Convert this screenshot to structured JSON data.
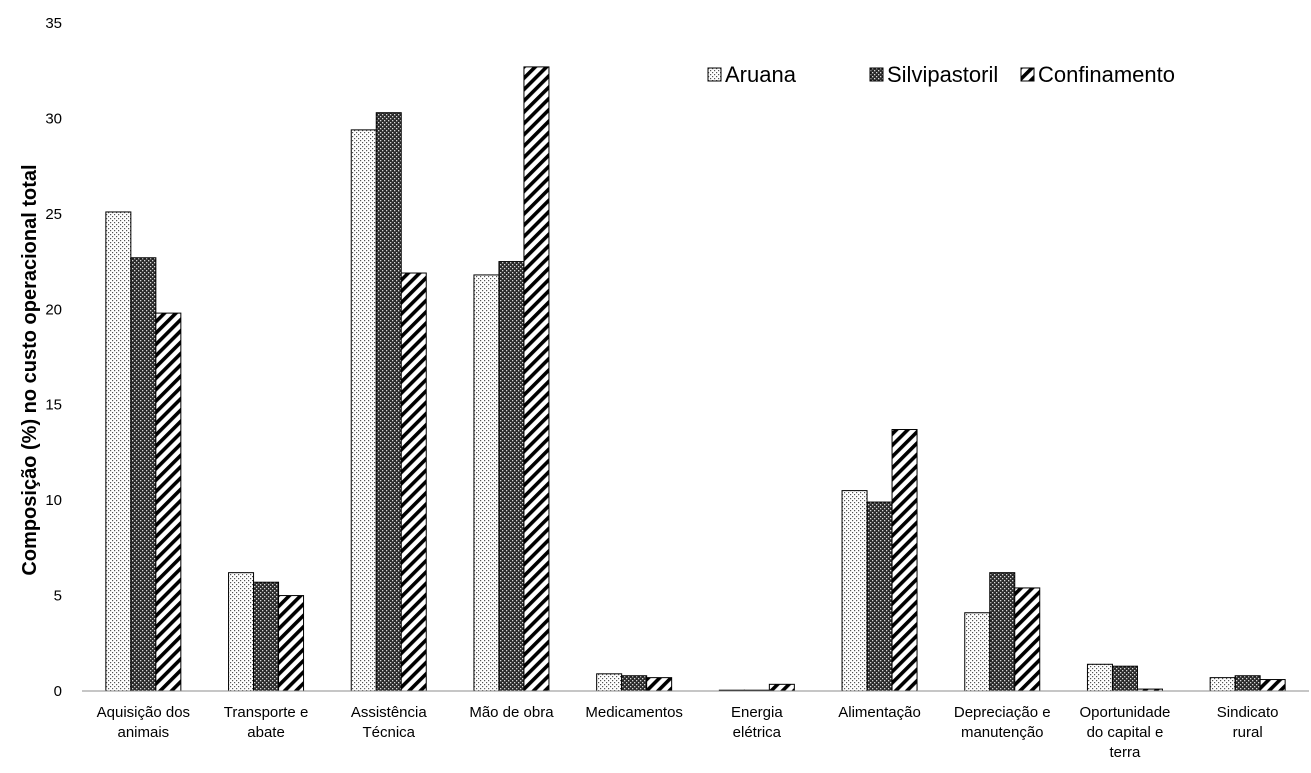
{
  "chart_data": {
    "type": "bar",
    "title": "",
    "xlabel": "",
    "ylabel": "Composição (%) no custo operacional total",
    "ylim": [
      0,
      35
    ],
    "yticks": [
      0,
      5,
      10,
      15,
      20,
      25,
      30,
      35
    ],
    "grid": false,
    "legend_position": "top-right",
    "categories": [
      [
        "Aquisição dos",
        "animais"
      ],
      [
        "Transporte e",
        "abate"
      ],
      [
        "Assistência",
        "Técnica"
      ],
      [
        "Mão de obra"
      ],
      [
        "Medicamentos"
      ],
      [
        "Energia",
        "elétrica"
      ],
      [
        "Alimentação"
      ],
      [
        "Depreciação e",
        "manutenção"
      ],
      [
        "Oportunidade",
        "do capital e",
        "terra"
      ],
      [
        "Sindicato",
        "rural"
      ]
    ],
    "series": [
      {
        "name": "Aruana",
        "pattern": "dots",
        "values": [
          25.1,
          6.2,
          29.4,
          21.8,
          0.9,
          0.0,
          10.5,
          4.1,
          1.4,
          0.7
        ]
      },
      {
        "name": "Silvipastoril",
        "pattern": "dark-check",
        "values": [
          22.7,
          5.7,
          30.3,
          22.5,
          0.8,
          0.0,
          9.9,
          6.2,
          1.3,
          0.8
        ]
      },
      {
        "name": "Confinamento",
        "pattern": "diagonal",
        "values": [
          19.8,
          5.0,
          21.9,
          32.7,
          0.7,
          0.35,
          13.7,
          5.4,
          0.1,
          0.6
        ]
      }
    ]
  }
}
